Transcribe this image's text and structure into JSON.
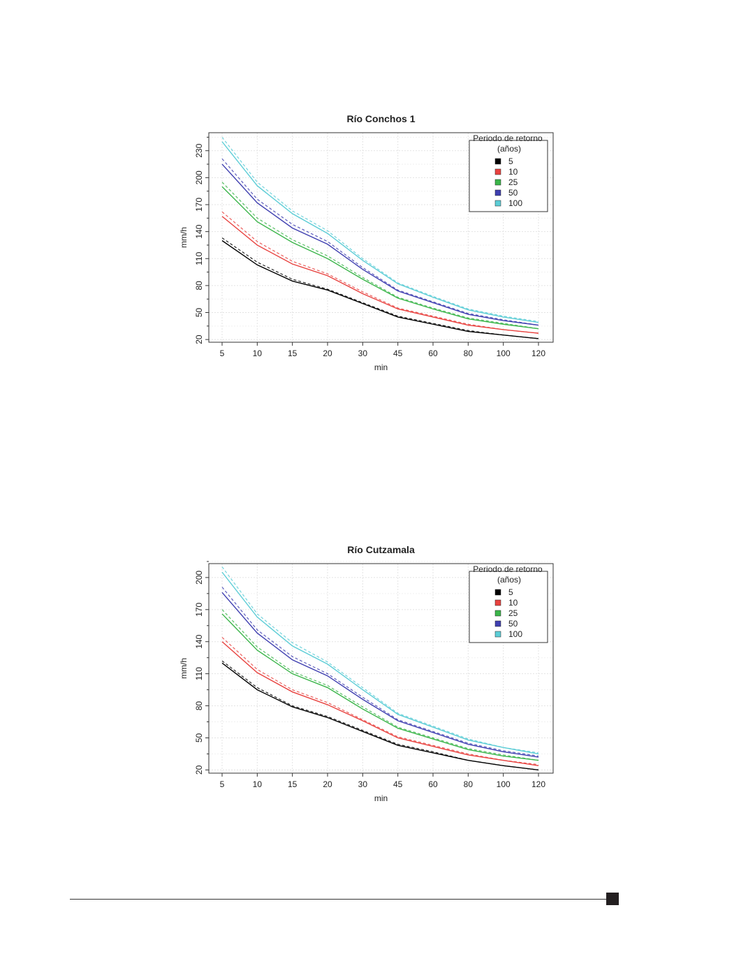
{
  "colors": {
    "5": "#000000",
    "10": "#e8423f",
    "25": "#3bb54a",
    "50": "#3f3fb0",
    "100": "#5ccdd6"
  },
  "chart_data": [
    {
      "type": "line",
      "title": "Río Conchos 1",
      "xlabel": "min",
      "ylabel": "mm/h",
      "categories": [
        "5",
        "10",
        "15",
        "20",
        "30",
        "45",
        "60",
        "80",
        "100",
        "120"
      ],
      "ylim": [
        17,
        250
      ],
      "yticks": [
        20,
        50,
        80,
        110,
        140,
        170,
        200,
        230
      ],
      "grid": true,
      "legend": {
        "title_line1": "Periodo de retorno",
        "title_line2": "(años)",
        "placement": "top-right",
        "entries": [
          "5",
          "10",
          "25",
          "50",
          "100"
        ]
      },
      "series": [
        {
          "name": "5",
          "solid": [
            130,
            103,
            85,
            75,
            60,
            45,
            37,
            29,
            25,
            21
          ],
          "dashed": [
            133,
            106,
            87,
            76,
            61,
            46,
            38,
            30,
            25,
            21
          ]
        },
        {
          "name": "10",
          "solid": [
            157,
            125,
            104,
            91,
            71,
            54,
            45,
            36,
            31,
            27
          ],
          "dashed": [
            162,
            129,
            107,
            93,
            73,
            55,
            46,
            37,
            31,
            27
          ]
        },
        {
          "name": "25",
          "solid": [
            190,
            151,
            128,
            110,
            87,
            66,
            54,
            43,
            37,
            32
          ],
          "dashed": [
            195,
            155,
            131,
            113,
            89,
            67,
            55,
            44,
            38,
            32
          ]
        },
        {
          "name": "50",
          "solid": [
            215,
            172,
            144,
            126,
            98,
            74,
            61,
            48,
            41,
            36
          ],
          "dashed": [
            221,
            176,
            148,
            129,
            100,
            75,
            62,
            49,
            42,
            36
          ]
        },
        {
          "name": "100",
          "solid": [
            240,
            191,
            160,
            138,
            108,
            82,
            67,
            53,
            45,
            39
          ],
          "dashed": [
            245,
            195,
            163,
            141,
            110,
            83,
            68,
            54,
            46,
            40
          ]
        }
      ]
    },
    {
      "type": "line",
      "title": "Río Cutzamala",
      "xlabel": "min",
      "ylabel": "mm/h",
      "categories": [
        "5",
        "10",
        "15",
        "20",
        "30",
        "45",
        "60",
        "80",
        "100",
        "120"
      ],
      "ylim": [
        17,
        213
      ],
      "yticks": [
        20,
        50,
        80,
        110,
        140,
        170,
        200
      ],
      "grid": true,
      "legend": {
        "title_line1": "Periodo de retorno",
        "title_line2": "(años)",
        "placement": "top-right",
        "entries": [
          "5",
          "10",
          "25",
          "50",
          "100"
        ]
      },
      "series": [
        {
          "name": "5",
          "solid": [
            120,
            95,
            79,
            69,
            56,
            43,
            36,
            29,
            24,
            20
          ],
          "dashed": [
            122,
            97,
            80,
            70,
            57,
            44,
            37,
            29,
            24,
            20
          ]
        },
        {
          "name": "10",
          "solid": [
            140,
            111,
            93,
            81,
            66,
            50,
            42,
            34,
            29,
            24
          ],
          "dashed": [
            144,
            114,
            95,
            83,
            67,
            51,
            43,
            35,
            29,
            25
          ]
        },
        {
          "name": "25",
          "solid": [
            166,
            132,
            110,
            97,
            77,
            59,
            49,
            39,
            33,
            29
          ],
          "dashed": [
            170,
            135,
            112,
            99,
            79,
            60,
            50,
            40,
            34,
            29
          ]
        },
        {
          "name": "50",
          "solid": [
            186,
            148,
            123,
            108,
            86,
            66,
            55,
            44,
            37,
            32
          ],
          "dashed": [
            191,
            151,
            126,
            110,
            88,
            67,
            56,
            45,
            38,
            33
          ]
        },
        {
          "name": "100",
          "solid": [
            205,
            163,
            136,
            119,
            95,
            72,
            60,
            48,
            41,
            35
          ],
          "dashed": [
            210,
            166,
            139,
            121,
            97,
            73,
            61,
            49,
            41,
            36
          ]
        }
      ]
    }
  ]
}
